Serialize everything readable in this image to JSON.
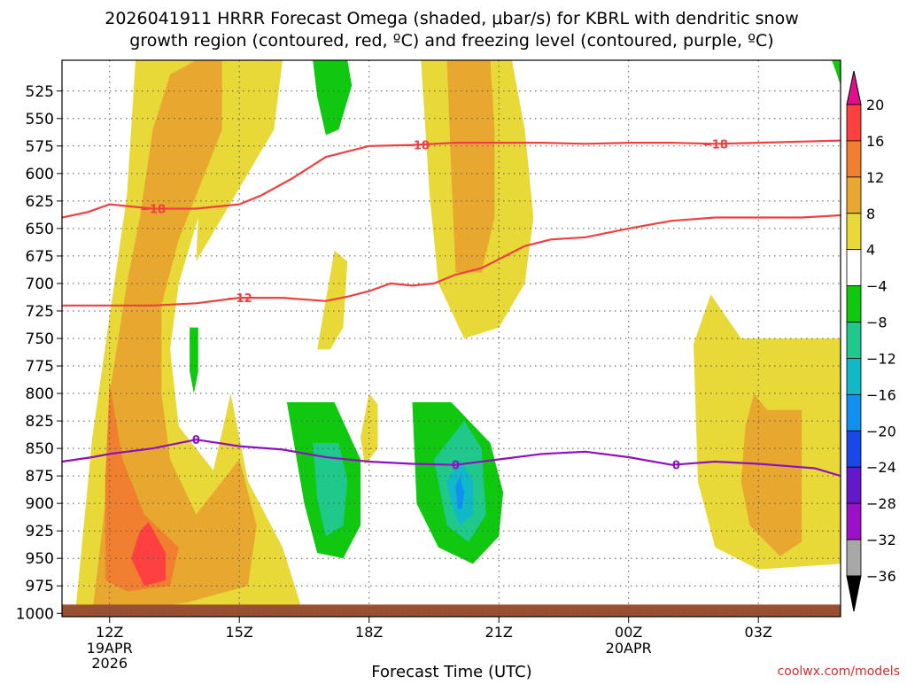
{
  "chart_data": {
    "type": "heatmap",
    "title_line1": "2026041911 HRRR Forecast Omega (shaded, μbar/s) for KBRL with dendritic snow",
    "title_line2": "growth region (contoured, red, ºC) and freezing level (contoured, purple, ºC)",
    "xlabel": "Forecast Time (UTC)",
    "credit": "coolwx.com/models",
    "x_range_hours": [
      10.9,
      28.9
    ],
    "y_range_mb": [
      1003,
      497
    ],
    "x_ticks": [
      {
        "hour": 12,
        "label": "12Z",
        "sub1": "19APR",
        "sub2": "2026"
      },
      {
        "hour": 15,
        "label": "15Z",
        "sub1": "",
        "sub2": ""
      },
      {
        "hour": 18,
        "label": "18Z",
        "sub1": "",
        "sub2": ""
      },
      {
        "hour": 21,
        "label": "21Z",
        "sub1": "",
        "sub2": ""
      },
      {
        "hour": 24,
        "label": "00Z",
        "sub1": "20APR",
        "sub2": ""
      },
      {
        "hour": 27,
        "label": "03Z",
        "sub1": "",
        "sub2": ""
      }
    ],
    "y_ticks": [
      525,
      550,
      575,
      600,
      625,
      650,
      675,
      700,
      725,
      750,
      775,
      800,
      825,
      850,
      875,
      900,
      925,
      950,
      975,
      1000
    ],
    "y_tick_labels": [
      "525",
      "550",
      "575",
      "600",
      "625",
      "650",
      "675",
      "700",
      "725",
      "750",
      "775",
      "800",
      "825",
      "850",
      "875",
      "900",
      "925",
      "950",
      "975",
      "1000"
    ],
    "colorbar": {
      "levels": [
        20,
        16,
        12,
        8,
        4,
        -4,
        -8,
        -12,
        -16,
        -20,
        -24,
        -28,
        -32,
        -36
      ],
      "labels": [
        "20",
        "16",
        "12",
        "8",
        "4",
        "−4",
        "−8",
        "−12",
        "−16",
        "−20",
        "−24",
        "−28",
        "−32",
        "−36"
      ],
      "colors": [
        "#ff4040",
        "#f08030",
        "#e8a830",
        "#e8d838",
        "#ffffff",
        "#10c810",
        "#20c88c",
        "#10b8c8",
        "#1090f0",
        "#1848e8",
        "#6418c8",
        "#9c10c8",
        "#a8a8a8"
      ],
      "top_color": "#e0108c",
      "bottom_color": "#000000"
    },
    "omega_regions": [
      {
        "name": "yellow-left-main",
        "value": 4,
        "color": "#e8d838",
        "points": [
          [
            11.2,
            1003
          ],
          [
            11.6,
            840
          ],
          [
            12.0,
            730
          ],
          [
            12.4,
            620
          ],
          [
            12.6,
            497
          ],
          [
            15.0,
            497
          ],
          [
            14.8,
            560
          ],
          [
            14.2,
            620
          ],
          [
            13.6,
            700
          ],
          [
            13.4,
            760
          ],
          [
            13.6,
            830
          ],
          [
            14.4,
            870
          ],
          [
            14.8,
            800
          ],
          [
            15.2,
            880
          ],
          [
            16.0,
            940
          ],
          [
            16.4,
            990
          ],
          [
            16.4,
            1003
          ]
        ]
      },
      {
        "name": "yellow-upper-right-lobe",
        "value": 4,
        "color": "#e8d838",
        "points": [
          [
            14.4,
            497
          ],
          [
            16.0,
            497
          ],
          [
            15.8,
            560
          ],
          [
            15.2,
            600
          ],
          [
            14.6,
            640
          ],
          [
            14.0,
            680
          ],
          [
            14.1,
            600
          ]
        ]
      },
      {
        "name": "orange-left",
        "value": 8,
        "color": "#e8a830",
        "points": [
          [
            11.6,
            1000
          ],
          [
            11.9,
            900
          ],
          [
            12.0,
            800
          ],
          [
            12.4,
            700
          ],
          [
            12.7,
            640
          ],
          [
            13.0,
            560
          ],
          [
            13.4,
            510
          ],
          [
            14.0,
            497
          ],
          [
            14.6,
            497
          ],
          [
            14.6,
            560
          ],
          [
            14.0,
            620
          ],
          [
            13.6,
            660
          ],
          [
            13.2,
            720
          ],
          [
            13.2,
            800
          ],
          [
            13.4,
            860
          ],
          [
            14.0,
            910
          ],
          [
            15.0,
            860
          ],
          [
            15.4,
            920
          ],
          [
            15.2,
            975
          ],
          [
            13.8,
            990
          ],
          [
            12.2,
            1000
          ]
        ]
      },
      {
        "name": "darkorange-left",
        "value": 12,
        "color": "#f08030",
        "points": [
          [
            11.9,
            970
          ],
          [
            11.9,
            880
          ],
          [
            12.0,
            790
          ],
          [
            12.3,
            860
          ],
          [
            12.8,
            910
          ],
          [
            13.6,
            940
          ],
          [
            13.4,
            975
          ],
          [
            12.4,
            980
          ]
        ]
      },
      {
        "name": "red-left",
        "value": 16,
        "color": "#ff4040",
        "points": [
          [
            12.5,
            950
          ],
          [
            12.7,
            925
          ],
          [
            12.9,
            917
          ],
          [
            13.3,
            945
          ],
          [
            13.3,
            970
          ],
          [
            12.8,
            975
          ]
        ]
      },
      {
        "name": "yellow-center",
        "value": 4,
        "color": "#e8d838",
        "points": [
          [
            19.2,
            497
          ],
          [
            21.3,
            497
          ],
          [
            21.6,
            560
          ],
          [
            21.8,
            640
          ],
          [
            21.6,
            700
          ],
          [
            21.0,
            740
          ],
          [
            20.2,
            750
          ],
          [
            19.6,
            700
          ],
          [
            19.4,
            620
          ]
        ]
      },
      {
        "name": "orange-center",
        "value": 8,
        "color": "#e8a830",
        "points": [
          [
            19.8,
            497
          ],
          [
            20.8,
            497
          ],
          [
            20.9,
            560
          ],
          [
            20.9,
            640
          ],
          [
            20.6,
            690
          ],
          [
            20.0,
            690
          ],
          [
            19.9,
            600
          ]
        ]
      },
      {
        "name": "yellow-small-1",
        "value": 4,
        "color": "#e8d838",
        "points": [
          [
            16.8,
            760
          ],
          [
            17.2,
            670
          ],
          [
            17.5,
            680
          ],
          [
            17.4,
            740
          ],
          [
            17.1,
            760
          ]
        ]
      },
      {
        "name": "yellow-small-2",
        "value": 4,
        "color": "#e8d838",
        "points": [
          [
            17.8,
            840
          ],
          [
            18.0,
            800
          ],
          [
            18.2,
            810
          ],
          [
            18.2,
            850
          ],
          [
            17.9,
            865
          ]
        ]
      },
      {
        "name": "yellow-right",
        "value": 4,
        "color": "#e8d838",
        "points": [
          [
            25.5,
            755
          ],
          [
            25.9,
            710
          ],
          [
            26.6,
            750
          ],
          [
            27.8,
            750
          ],
          [
            28.9,
            750
          ],
          [
            28.9,
            955
          ],
          [
            27.0,
            960
          ],
          [
            26.0,
            940
          ],
          [
            25.6,
            880
          ]
        ]
      },
      {
        "name": "orange-right",
        "value": 8,
        "color": "#e8a830",
        "points": [
          [
            26.7,
            830
          ],
          [
            26.9,
            800
          ],
          [
            27.2,
            815
          ],
          [
            28.0,
            815
          ],
          [
            28.0,
            935
          ],
          [
            27.5,
            948
          ],
          [
            26.8,
            920
          ],
          [
            26.6,
            880
          ]
        ]
      },
      {
        "name": "green-left-blob",
        "value": -4,
        "color": "#10c810",
        "points": [
          [
            16.1,
            808
          ],
          [
            17.2,
            808
          ],
          [
            17.8,
            860
          ],
          [
            17.8,
            920
          ],
          [
            17.4,
            950
          ],
          [
            16.8,
            945
          ],
          [
            16.5,
            900
          ]
        ]
      },
      {
        "name": "teal-left-blob",
        "value": -8,
        "color": "#20c88c",
        "points": [
          [
            16.7,
            845
          ],
          [
            17.3,
            845
          ],
          [
            17.5,
            880
          ],
          [
            17.4,
            920
          ],
          [
            17.0,
            930
          ],
          [
            16.8,
            895
          ]
        ]
      },
      {
        "name": "green-right-blob",
        "value": -4,
        "color": "#10c810",
        "points": [
          [
            19.0,
            808
          ],
          [
            19.9,
            808
          ],
          [
            20.8,
            845
          ],
          [
            21.1,
            890
          ],
          [
            21.0,
            930
          ],
          [
            20.4,
            955
          ],
          [
            19.6,
            940
          ],
          [
            19.1,
            900
          ]
        ]
      },
      {
        "name": "teal-right-blob",
        "value": -8,
        "color": "#20c88c",
        "points": [
          [
            19.5,
            860
          ],
          [
            20.2,
            825
          ],
          [
            20.6,
            850
          ],
          [
            20.7,
            910
          ],
          [
            20.3,
            935
          ],
          [
            19.8,
            920
          ]
        ]
      },
      {
        "name": "cyan-right-blob",
        "value": -12,
        "color": "#10b8c8",
        "points": [
          [
            19.8,
            880
          ],
          [
            20.1,
            860
          ],
          [
            20.4,
            880
          ],
          [
            20.4,
            910
          ],
          [
            20.1,
            920
          ],
          [
            19.9,
            900
          ]
        ]
      },
      {
        "name": "blue-right-blob",
        "value": -16,
        "color": "#1090f0",
        "points": [
          [
            20.0,
            885
          ],
          [
            20.1,
            875
          ],
          [
            20.2,
            890
          ],
          [
            20.15,
            905
          ],
          [
            20.05,
            905
          ]
        ]
      },
      {
        "name": "green-top-blob",
        "value": -4,
        "color": "#10c810",
        "points": [
          [
            16.7,
            497
          ],
          [
            17.5,
            497
          ],
          [
            17.6,
            520
          ],
          [
            17.3,
            560
          ],
          [
            17.0,
            565
          ],
          [
            16.8,
            530
          ]
        ]
      },
      {
        "name": "green-small-sliver",
        "value": -4,
        "color": "#10c810",
        "points": [
          [
            13.85,
            740
          ],
          [
            14.05,
            740
          ],
          [
            14.05,
            780
          ],
          [
            13.95,
            800
          ],
          [
            13.85,
            780
          ]
        ]
      },
      {
        "name": "green-top-right-sliver",
        "value": -4,
        "color": "#10c810",
        "points": [
          [
            28.7,
            497
          ],
          [
            28.9,
            497
          ],
          [
            28.9,
            520
          ],
          [
            28.8,
            508
          ]
        ]
      }
    ],
    "contours": [
      {
        "name": "minus18",
        "value": -18,
        "color": "#ee4040",
        "label": "−18",
        "points": [
          [
            10.9,
            640
          ],
          [
            11.5,
            635
          ],
          [
            12.0,
            628
          ],
          [
            13.0,
            632
          ],
          [
            14.0,
            632
          ],
          [
            15.0,
            628
          ],
          [
            15.5,
            620
          ],
          [
            16.2,
            605
          ],
          [
            17.0,
            585
          ],
          [
            18.0,
            575
          ],
          [
            19.0,
            574
          ],
          [
            20.0,
            572
          ],
          [
            21.0,
            572
          ],
          [
            22.0,
            572
          ],
          [
            23.0,
            573
          ],
          [
            24.0,
            572
          ],
          [
            25.0,
            572
          ],
          [
            26.0,
            573
          ],
          [
            27.0,
            572
          ],
          [
            28.0,
            571
          ],
          [
            28.9,
            570
          ]
        ],
        "label_hours": [
          13.0,
          19.1,
          26.0
        ]
      },
      {
        "name": "minus12",
        "value": -12,
        "color": "#ee4040",
        "label": "−12",
        "points": [
          [
            10.9,
            720
          ],
          [
            12.0,
            720
          ],
          [
            13.0,
            720
          ],
          [
            14.0,
            718
          ],
          [
            15.0,
            713
          ],
          [
            16.0,
            713
          ],
          [
            17.0,
            716
          ],
          [
            17.5,
            712
          ],
          [
            18.0,
            707
          ],
          [
            18.5,
            700
          ],
          [
            19.0,
            702
          ],
          [
            19.5,
            700
          ],
          [
            20.0,
            692
          ],
          [
            20.6,
            686
          ],
          [
            21.0,
            678
          ],
          [
            21.6,
            666
          ],
          [
            22.2,
            660
          ],
          [
            23.0,
            658
          ],
          [
            24.0,
            650
          ],
          [
            25.0,
            643
          ],
          [
            26.0,
            640
          ],
          [
            27.0,
            640
          ],
          [
            28.0,
            640
          ],
          [
            28.9,
            638
          ]
        ],
        "label_hours": [
          15.0
        ]
      },
      {
        "name": "zero",
        "value": 0,
        "color": "#9010c0",
        "label": "0",
        "points": [
          [
            10.9,
            862
          ],
          [
            11.6,
            858
          ],
          [
            12.0,
            855
          ],
          [
            13.0,
            850
          ],
          [
            14.0,
            842
          ],
          [
            15.0,
            848
          ],
          [
            16.0,
            851
          ],
          [
            17.0,
            858
          ],
          [
            18.0,
            862
          ],
          [
            19.0,
            864
          ],
          [
            20.0,
            865
          ],
          [
            21.0,
            860
          ],
          [
            22.0,
            855
          ],
          [
            23.0,
            853
          ],
          [
            24.0,
            858
          ],
          [
            25.0,
            865
          ],
          [
            26.0,
            862
          ],
          [
            27.0,
            864
          ],
          [
            28.3,
            868
          ],
          [
            28.9,
            875
          ]
        ],
        "label_hours": [
          14.0,
          20.0,
          25.1
        ]
      }
    ],
    "ground": {
      "color": "#985030",
      "top_mb": 992
    }
  }
}
